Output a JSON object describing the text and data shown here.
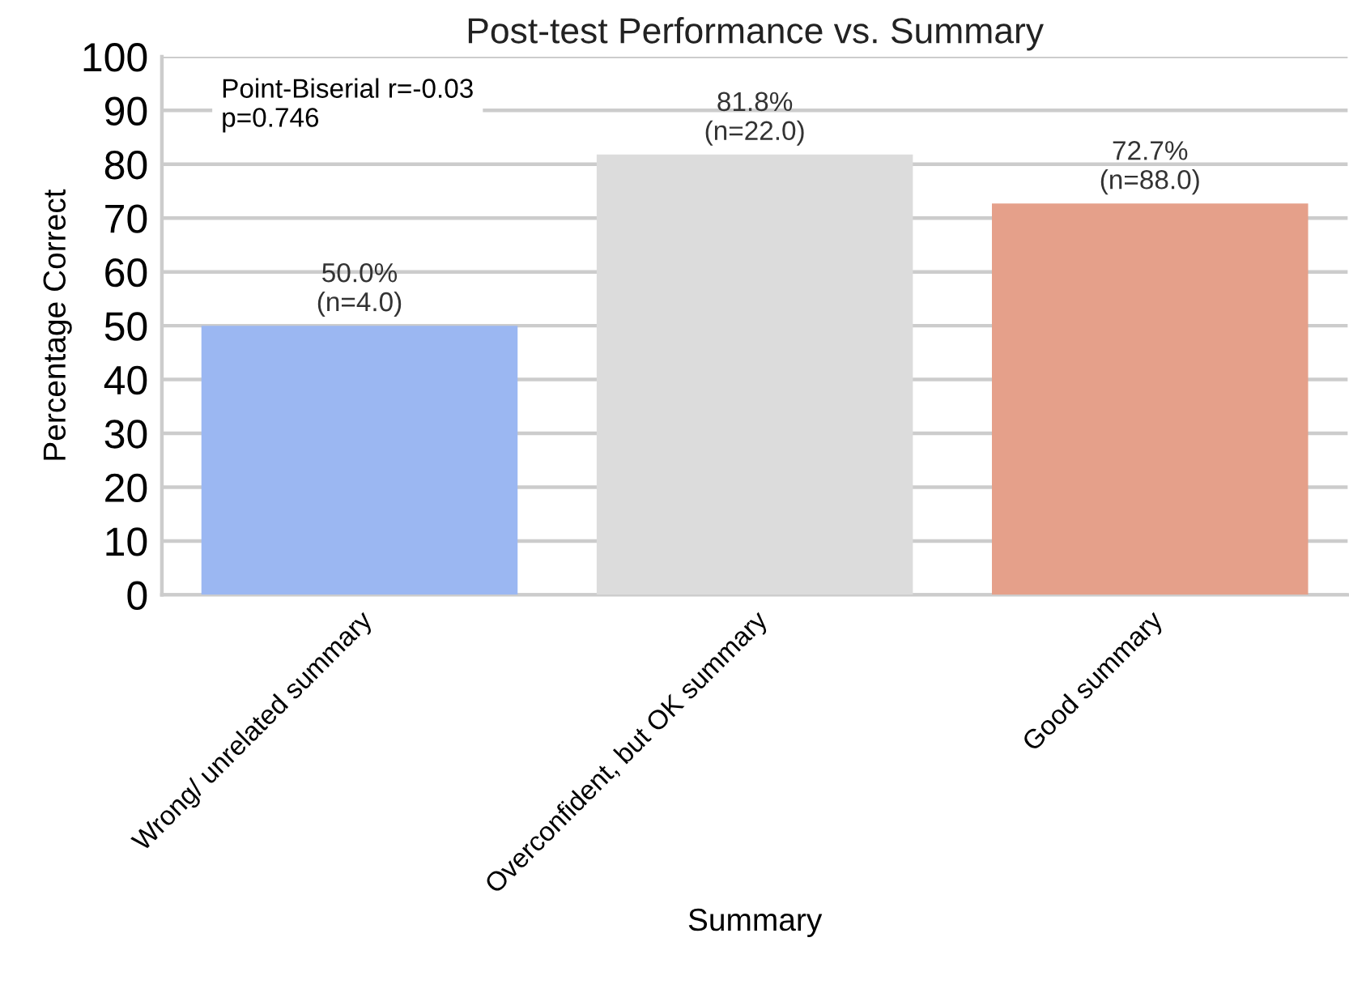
{
  "chart_data": {
    "type": "bar",
    "title": "Post-test Performance vs. Summary",
    "xlabel": "Summary",
    "ylabel": "Percentage Correct",
    "categories": [
      "Wrong/ unrelated summary",
      "Overconfident, but OK summary",
      "Good summary"
    ],
    "values": [
      50.0,
      81.8,
      72.7
    ],
    "colors": [
      "#9bb7f2",
      "#dcdcdc",
      "#e5a08a"
    ],
    "value_labels": [
      "50.0%\n(n=4.0)",
      "81.8%\n(n=22.0)",
      "72.7%\n(n=88.0)"
    ],
    "ylim": [
      0,
      100
    ],
    "yticks": [
      0,
      10,
      20,
      30,
      40,
      50,
      60,
      70,
      80,
      90,
      100
    ],
    "grid": "y",
    "annotations": [
      "Point-Biserial r=-0.03\np=0.746"
    ]
  }
}
